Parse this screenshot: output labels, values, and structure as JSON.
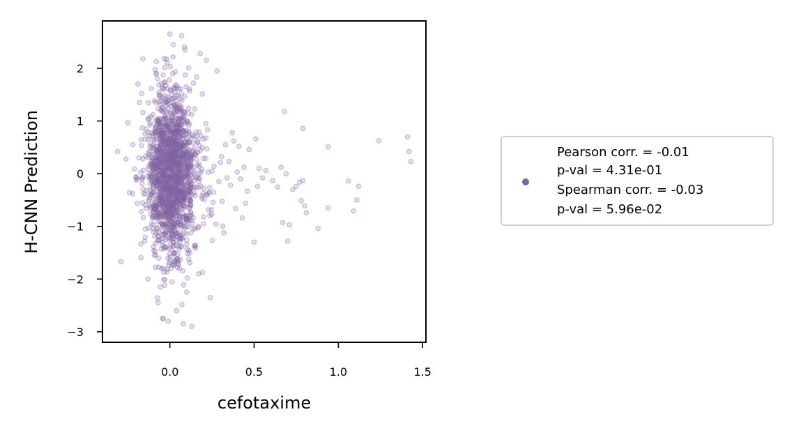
{
  "chart_data": {
    "type": "scatter",
    "title": "",
    "xlabel": "cefotaxime",
    "ylabel": "H-CNN Prediction",
    "xlim": [
      -0.4,
      1.52
    ],
    "ylim": [
      -3.2,
      2.9
    ],
    "xticks": [
      0.0,
      0.5,
      1.0,
      1.5
    ],
    "xtick_labels": [
      "0.0",
      "0.5",
      "1.0",
      "1.5"
    ],
    "yticks": [
      -3,
      -2,
      -1,
      0,
      1,
      2
    ],
    "ytick_labels": [
      "−3",
      "−2",
      "−1",
      "0",
      "1",
      "2"
    ],
    "grid": false,
    "marker_color": "#8064a2",
    "marker_alpha": 0.2,
    "legend_position": "right",
    "legend_lines": [
      "Pearson corr. = -0.01",
      "p-val = 4.31e-01",
      "Spearman corr. = -0.03",
      "p-val = 5.96e-02"
    ],
    "points": [
      [
        -0.31,
        0.42
      ],
      [
        -0.29,
        -1.67
      ],
      [
        -0.26,
        0.28
      ],
      [
        -0.25,
        0.97
      ],
      [
        -0.24,
        -0.36
      ],
      [
        -0.22,
        0.55
      ],
      [
        -0.21,
        0.09
      ],
      [
        -0.2,
        -0.12
      ],
      [
        -0.19,
        1.7
      ],
      [
        -0.18,
        1.35
      ],
      [
        -0.17,
        -0.72
      ],
      [
        -0.16,
        2.18
      ],
      [
        -0.15,
        -1.28
      ],
      [
        -0.14,
        0.85
      ],
      [
        -0.13,
        -2.0
      ],
      [
        -0.12,
        -0.45
      ],
      [
        -0.11,
        1.62
      ],
      [
        -0.1,
        0.19
      ],
      [
        -0.09,
        -1.55
      ],
      [
        -0.08,
        1.9
      ],
      [
        -0.07,
        -2.45
      ],
      [
        -0.06,
        -0.9
      ],
      [
        -0.05,
        0.62
      ],
      [
        -0.04,
        -2.75
      ],
      [
        -0.03,
        2.02
      ],
      [
        -0.02,
        -0.18
      ],
      [
        -0.01,
        -2.8
      ],
      [
        0.0,
        2.65
      ],
      [
        0.01,
        -1.12
      ],
      [
        0.02,
        2.45
      ],
      [
        0.03,
        0.33
      ],
      [
        0.04,
        -2.6
      ],
      [
        0.05,
        1.48
      ],
      [
        0.06,
        -0.58
      ],
      [
        0.07,
        2.62
      ],
      [
        0.08,
        -2.85
      ],
      [
        0.09,
        2.35
      ],
      [
        0.1,
        -2.25
      ],
      [
        0.11,
        1.15
      ],
      [
        0.12,
        -0.25
      ],
      [
        0.13,
        -2.9
      ],
      [
        0.14,
        1.72
      ],
      [
        0.15,
        -1.38
      ],
      [
        0.16,
        0.71
      ],
      [
        0.17,
        -1.9
      ],
      [
        0.18,
        2.28
      ],
      [
        0.2,
        -0.82
      ],
      [
        0.22,
        0.47
      ],
      [
        0.24,
        -2.35
      ],
      [
        0.25,
        0.05
      ],
      [
        0.26,
        -0.35
      ],
      [
        0.28,
        1.95
      ],
      [
        0.29,
        -0.15
      ],
      [
        0.3,
        0.21
      ],
      [
        0.31,
        -0.52
      ],
      [
        0.32,
        -1.12
      ],
      [
        0.33,
        0.55
      ],
      [
        0.34,
        -0.08
      ],
      [
        0.35,
        0.23
      ],
      [
        0.36,
        -0.22
      ],
      [
        0.37,
        0.78
      ],
      [
        0.38,
        0.62
      ],
      [
        0.39,
        -0.66
      ],
      [
        0.4,
        0.03
      ],
      [
        0.41,
        0.52
      ],
      [
        0.42,
        -0.1
      ],
      [
        0.43,
        -0.84
      ],
      [
        0.44,
        0.12
      ],
      [
        0.45,
        -0.56
      ],
      [
        0.46,
        -0.33
      ],
      [
        0.47,
        0.46
      ],
      [
        0.5,
        -1.3
      ],
      [
        0.51,
        0.66
      ],
      [
        0.52,
        -0.24
      ],
      [
        0.53,
        0.1
      ],
      [
        0.55,
        -0.08
      ],
      [
        0.57,
        0.06
      ],
      [
        0.61,
        -0.13
      ],
      [
        0.64,
        -0.25
      ],
      [
        0.66,
        0.12
      ],
      [
        0.67,
        -0.93
      ],
      [
        0.68,
        1.18
      ],
      [
        0.69,
        0.0
      ],
      [
        0.7,
        -1.28
      ],
      [
        0.71,
        -0.97
      ],
      [
        0.73,
        -0.3
      ],
      [
        0.75,
        -0.24
      ],
      [
        0.77,
        -0.16
      ],
      [
        0.78,
        -0.51
      ],
      [
        0.79,
        -0.13
      ],
      [
        0.79,
        0.86
      ],
      [
        0.8,
        -0.61
      ],
      [
        0.81,
        -0.74
      ],
      [
        0.88,
        -1.04
      ],
      [
        0.94,
        0.51
      ],
      [
        0.94,
        -0.65
      ],
      [
        1.06,
        -0.14
      ],
      [
        1.09,
        -0.71
      ],
      [
        1.11,
        -0.5
      ],
      [
        1.12,
        -0.24
      ],
      [
        1.24,
        0.63
      ],
      [
        1.41,
        0.7
      ],
      [
        1.42,
        0.42
      ],
      [
        1.43,
        0.23
      ]
    ],
    "core_cloud_note": "plus several thousand overlapping points concentrated near x = 0.0 (about -0.15 to 0.15), y from about -2.8 to 2.5"
  }
}
